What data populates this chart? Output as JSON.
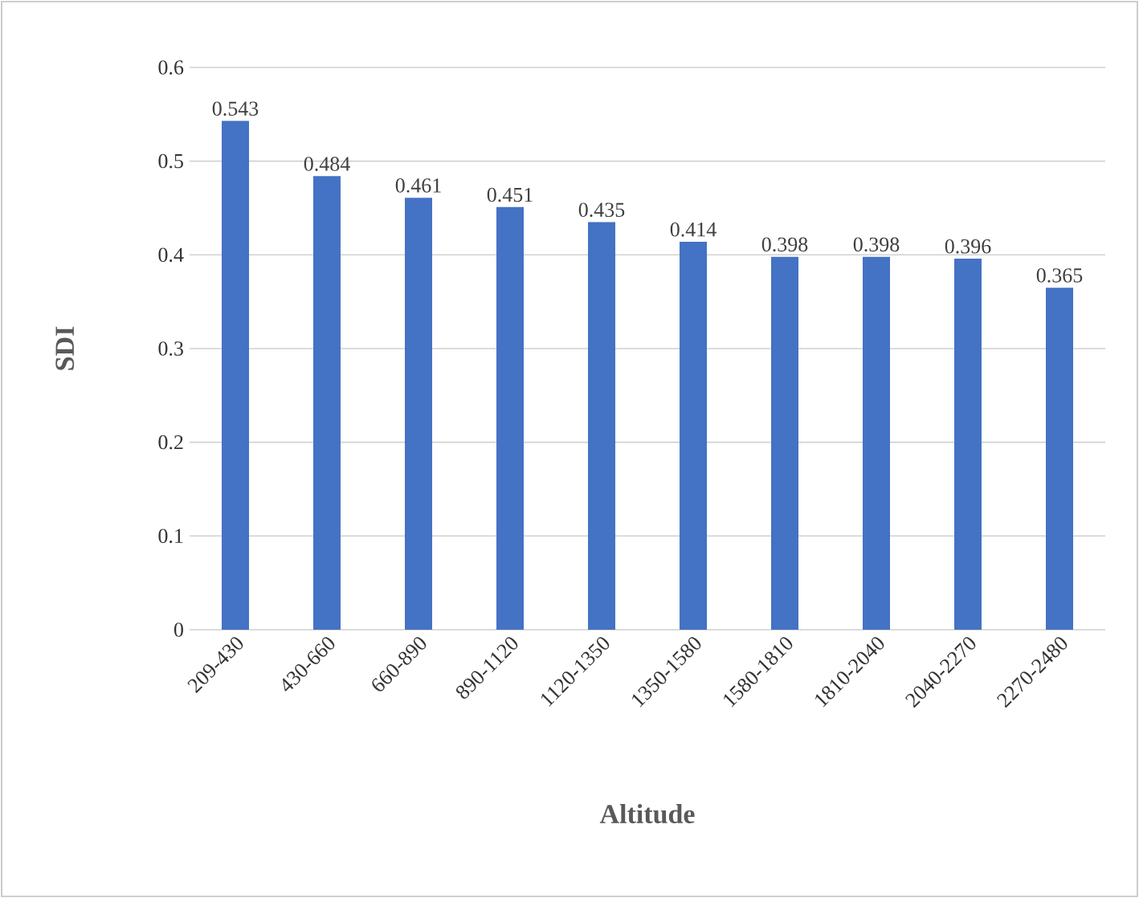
{
  "chart_data": {
    "type": "bar",
    "xlabel": "Altitude",
    "ylabel": "SDI",
    "categories": [
      "209-430",
      "430-660",
      "660-890",
      "890-1120",
      "1120-1350",
      "1350-1580",
      "1580-1810",
      "1810-2040",
      "2040-2270",
      "2270-2480"
    ],
    "values": [
      0.543,
      0.484,
      0.461,
      0.451,
      0.435,
      0.414,
      0.398,
      0.398,
      0.396,
      0.365
    ],
    "color": "#4472c4",
    "ylim": [
      0,
      0.6
    ],
    "yticks": [
      0,
      0.1,
      0.2,
      0.3,
      0.4,
      0.5,
      0.6
    ],
    "grid": "y",
    "data_labels": true
  }
}
